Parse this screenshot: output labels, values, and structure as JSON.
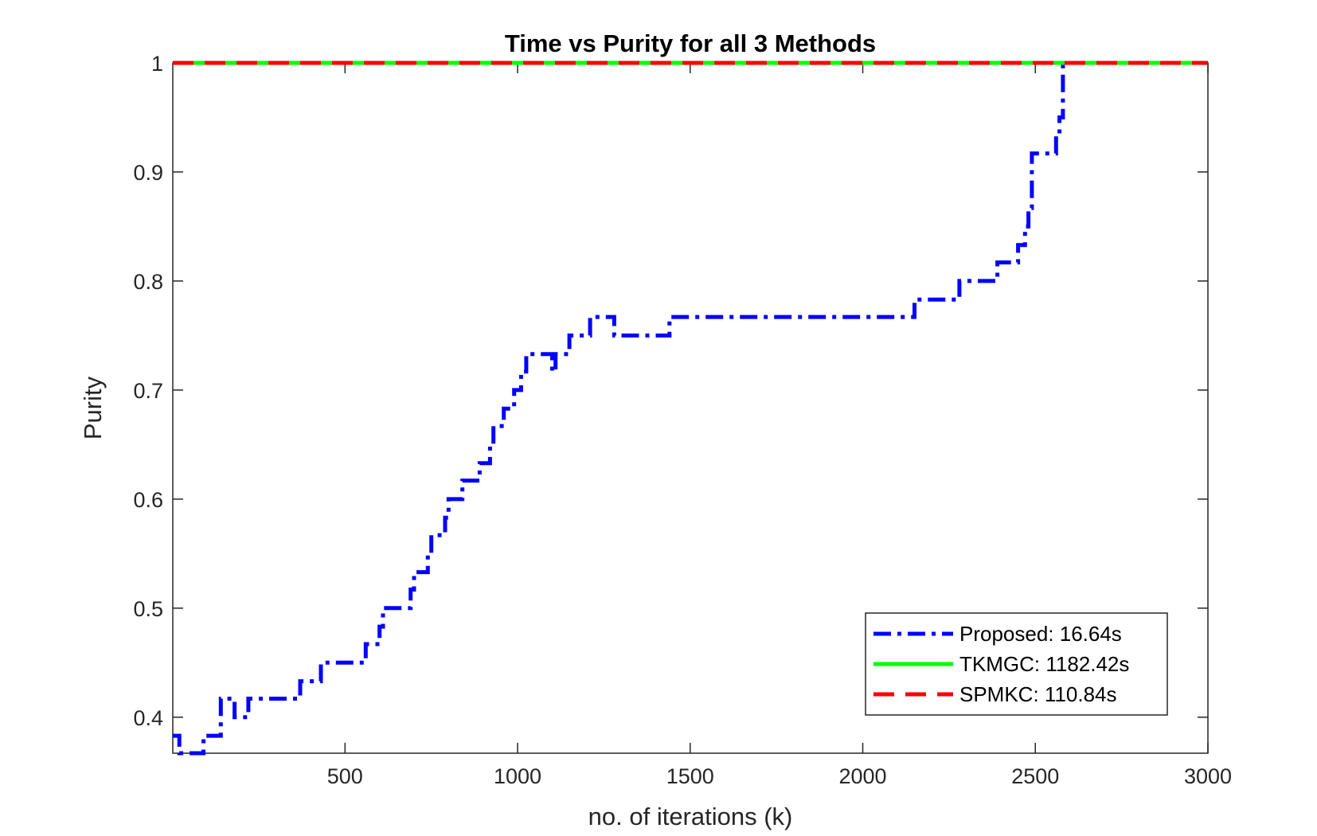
{
  "chart_data": {
    "type": "line",
    "title": "Time vs Purity for all 3 Methods",
    "xlabel": "no. of iterations (k)",
    "ylabel": "Purity",
    "xlim": [
      1,
      3000
    ],
    "ylim": [
      0.367,
      1.0
    ],
    "xticks": [
      500,
      1000,
      1500,
      2000,
      2500,
      3000
    ],
    "yticks": [
      0.4,
      0.5,
      0.6,
      0.7,
      0.8,
      0.9,
      1.0
    ],
    "xtick_labels": [
      "500",
      "1000",
      "1500",
      "2000",
      "2500",
      "3000"
    ],
    "ytick_labels": [
      "0.4",
      "0.5",
      "0.6",
      "0.7",
      "0.8",
      "0.9",
      "1"
    ],
    "grid": false,
    "legend_position": "bottom-right",
    "series": [
      {
        "name": "Proposed: 16.64s",
        "color": "#0000ff",
        "line_style": "dash-dot",
        "step": true,
        "points": [
          [
            1,
            0.383
          ],
          [
            20,
            0.367
          ],
          [
            90,
            0.383
          ],
          [
            140,
            0.417
          ],
          [
            180,
            0.4
          ],
          [
            220,
            0.417
          ],
          [
            370,
            0.433
          ],
          [
            430,
            0.45
          ],
          [
            560,
            0.467
          ],
          [
            600,
            0.483
          ],
          [
            610,
            0.5
          ],
          [
            690,
            0.517
          ],
          [
            700,
            0.533
          ],
          [
            740,
            0.55
          ],
          [
            750,
            0.567
          ],
          [
            790,
            0.583
          ],
          [
            800,
            0.6
          ],
          [
            840,
            0.617
          ],
          [
            890,
            0.633
          ],
          [
            920,
            0.65
          ],
          [
            930,
            0.667
          ],
          [
            960,
            0.683
          ],
          [
            990,
            0.7
          ],
          [
            1010,
            0.717
          ],
          [
            1025,
            0.733
          ],
          [
            1100,
            0.717
          ],
          [
            1110,
            0.733
          ],
          [
            1150,
            0.75
          ],
          [
            1210,
            0.767
          ],
          [
            1280,
            0.75
          ],
          [
            1440,
            0.767
          ],
          [
            2150,
            0.783
          ],
          [
            2280,
            0.8
          ],
          [
            2390,
            0.817
          ],
          [
            2450,
            0.833
          ],
          [
            2470,
            0.85
          ],
          [
            2480,
            0.867
          ],
          [
            2490,
            0.917
          ],
          [
            2560,
            0.933
          ],
          [
            2570,
            0.95
          ],
          [
            2580,
            1.0
          ],
          [
            2581,
            1.0
          ]
        ]
      },
      {
        "name": "TKMGC: 1182.42s",
        "color": "#00ff00",
        "line_style": "solid",
        "step": false,
        "points": [
          [
            1,
            1.0
          ],
          [
            3000,
            1.0
          ]
        ]
      },
      {
        "name": "SPMKC: 110.84s",
        "color": "#ff0000",
        "line_style": "dashed",
        "step": false,
        "points": [
          [
            1,
            1.0
          ],
          [
            3000,
            1.0
          ]
        ]
      }
    ]
  }
}
